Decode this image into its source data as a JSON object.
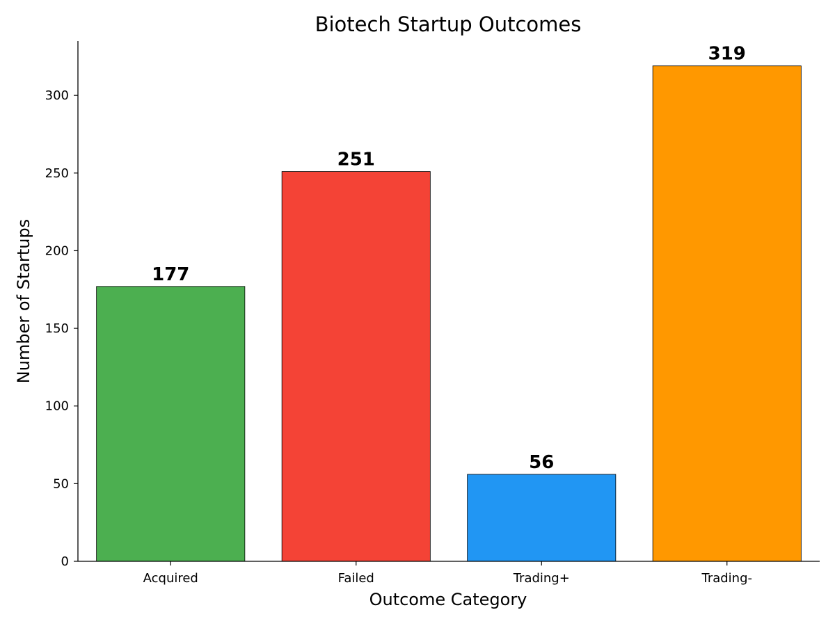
{
  "chart_data": {
    "type": "bar",
    "title": "Biotech Startup Outcomes",
    "xlabel": "Outcome Category",
    "ylabel": "Number of Startups",
    "categories": [
      "Acquired",
      "Failed",
      "Trading+",
      "Trading-"
    ],
    "values": [
      177,
      251,
      56,
      319
    ],
    "data_labels": [
      "177",
      "251",
      "56",
      "319"
    ],
    "colors": [
      "#4caf50",
      "#f44336",
      "#2196f3",
      "#ff9800"
    ],
    "edge_color": "#000000",
    "ylim": [
      0,
      335
    ],
    "yticks": [
      0,
      50,
      100,
      150,
      200,
      250,
      300
    ],
    "ytick_labels": [
      "0",
      "50",
      "100",
      "150",
      "200",
      "250",
      "300"
    ],
    "grid": false,
    "legend": "none",
    "spines": [
      "left",
      "bottom"
    ]
  }
}
